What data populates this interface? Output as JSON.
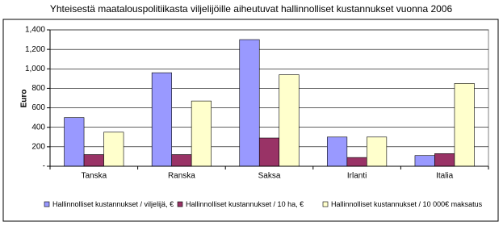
{
  "chart_data": {
    "type": "bar",
    "title": "Yhteisestä maatalouspolitiikasta viljelijöille aiheutuvat hallinnolliset kustannukset vuonna 2006",
    "y_label": "Euro",
    "categories": [
      "Tanska",
      "Ranska",
      "Saksa",
      "Irlanti",
      "Italia"
    ],
    "series": [
      {
        "name": "Hallinnolliset kustannukset / viljelijä, €",
        "color": "#9999ff",
        "values": [
          500,
          960,
          1300,
          300,
          110
        ]
      },
      {
        "name": "Hallinnolliset kustannukset / 10 ha, €",
        "color": "#993366",
        "values": [
          120,
          120,
          290,
          90,
          130
        ]
      },
      {
        "name": "Hallinnolliset kustannukset / 10 000€ maksatus",
        "color": "#ffffcc",
        "values": [
          350,
          670,
          940,
          300,
          850
        ]
      }
    ],
    "ylim": [
      0,
      1400
    ],
    "yticks": [
      {
        "value": 0,
        "label": "-"
      },
      200,
      400,
      600,
      800,
      {
        "value": 1000,
        "label": "1,000"
      },
      {
        "value": 1200,
        "label": "1,200"
      },
      {
        "value": 1400,
        "label": "1,400"
      }
    ],
    "grid": true
  }
}
